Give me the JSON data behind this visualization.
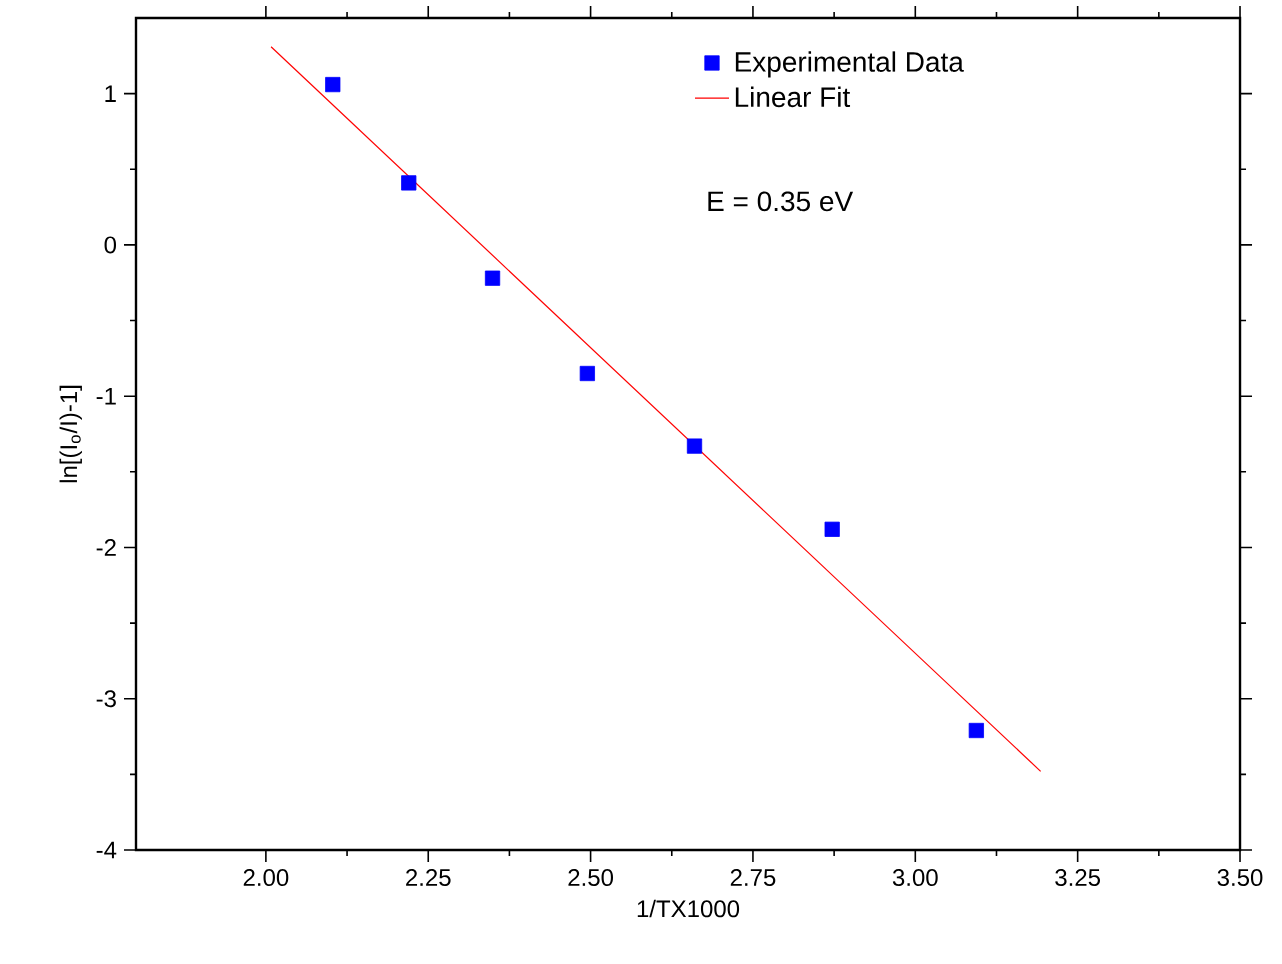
{
  "chart_data": {
    "type": "scatter",
    "xlabel": "1/TX1000",
    "ylabel": "ln[(I$_{o}$/I)-1]",
    "xlim": [
      1.8,
      3.5
    ],
    "ylim": [
      -4,
      1.5
    ],
    "xticks": [
      {
        "value": 2.0,
        "label": "2.00"
      },
      {
        "value": 2.25,
        "label": "2.25"
      },
      {
        "value": 2.5,
        "label": "2.50"
      },
      {
        "value": 2.75,
        "label": "2.75"
      },
      {
        "value": 3.0,
        "label": "3.00"
      },
      {
        "value": 3.25,
        "label": "3.25"
      },
      {
        "value": 3.5,
        "label": "3.50"
      }
    ],
    "yticks": [
      -4,
      -3,
      -2,
      -1,
      0,
      1
    ],
    "series": [
      {
        "name": "Experimental Data",
        "marker": "square",
        "color": "#0000ff",
        "x": [
          2.103,
          2.22,
          2.349,
          2.495,
          2.66,
          2.872,
          3.094
        ],
        "values": [
          1.06,
          0.41,
          -0.22,
          -0.85,
          -1.33,
          -1.88,
          -3.21
        ]
      },
      {
        "name": "Linear Fit",
        "type": "line",
        "marker": "none",
        "color": "#ff0000",
        "x": [
          2.008,
          3.193
        ],
        "values": [
          1.31,
          -3.48
        ]
      }
    ],
    "annotations": [
      "E = 0.35 eV"
    ],
    "legend": "top right",
    "grid": false
  }
}
